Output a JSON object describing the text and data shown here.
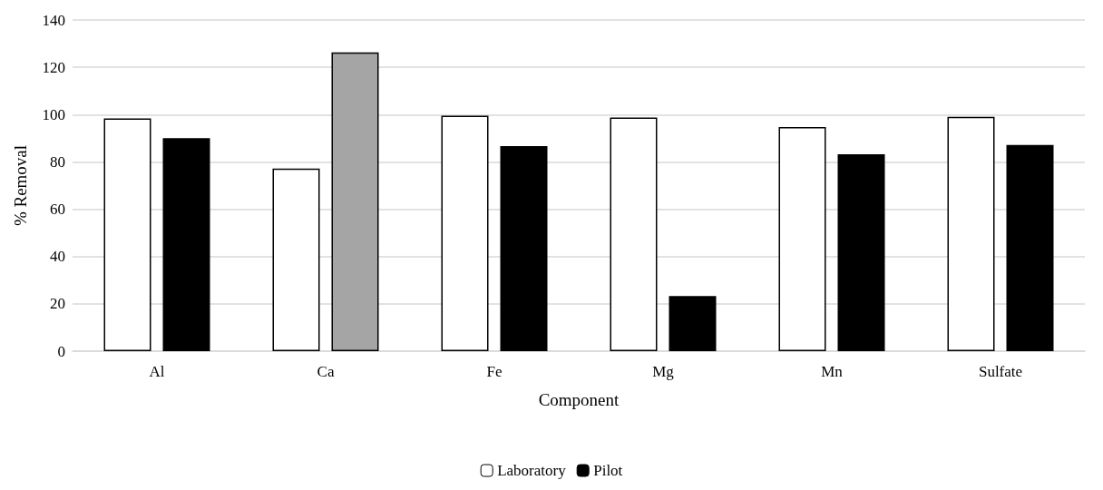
{
  "chart_data": {
    "type": "bar",
    "xlabel": "Component",
    "ylabel": "% Removal",
    "categories": [
      "Al",
      "Ca",
      "Fe",
      "Mg",
      "Mn",
      "Sulfate"
    ],
    "series": [
      {
        "name": "Laboratory",
        "color": "#ffffff",
        "values": [
          98.4,
          77.2,
          99.5,
          98.8,
          94.7,
          99.1
        ]
      },
      {
        "name": "Pilot",
        "color": "#000000",
        "colors": [
          "#000000",
          "#a5a5a5",
          "#000000",
          "#000000",
          "#000000",
          "#000000"
        ],
        "values": [
          90.0,
          126.3,
          86.7,
          23.3,
          83.2,
          87.2
        ]
      }
    ],
    "ylim": [
      0,
      140
    ],
    "yticks": [
      0,
      20,
      40,
      60,
      80,
      100,
      120,
      140
    ],
    "grid": "y",
    "legend": "bottom"
  }
}
